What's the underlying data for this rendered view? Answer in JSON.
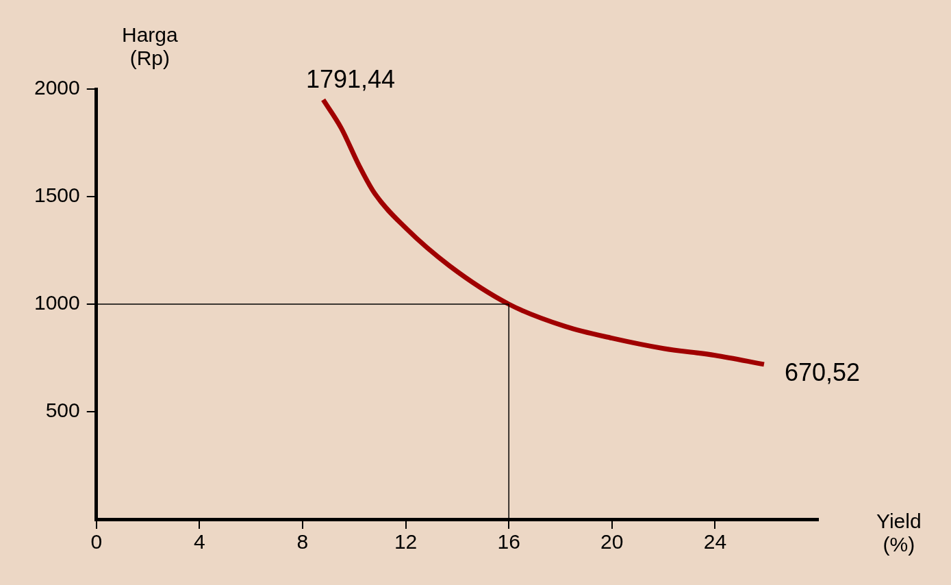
{
  "chart_data": {
    "type": "line",
    "xlabel": "Yield\n(%)",
    "ylabel": "Harga\n(Rp)",
    "x": [
      8.8,
      9.5,
      10.2,
      10.8,
      12,
      13.7,
      16,
      18.2,
      20,
      22,
      24,
      25.9
    ],
    "series": [
      {
        "color": "#a00000",
        "values": [
          1950,
          1818,
          1642,
          1514,
          1354,
          1178,
          1000,
          896,
          842,
          794,
          762,
          720
        ]
      }
    ],
    "xlim": [
      0,
      28
    ],
    "xticks": [
      0,
      4,
      8,
      12,
      16,
      20,
      24
    ],
    "ylim": [
      0,
      2000
    ],
    "yticks": [
      500,
      1000,
      1500,
      2000
    ],
    "ref_lines": [
      {
        "axis": "x",
        "value": 16,
        "color": "#000000"
      },
      {
        "axis": "y",
        "value": 1000,
        "color": "#000000"
      }
    ],
    "annotations": [
      "1791,44",
      "670,52"
    ],
    "grid": false,
    "legend": false,
    "marker": "none",
    "line_style": "solid"
  }
}
